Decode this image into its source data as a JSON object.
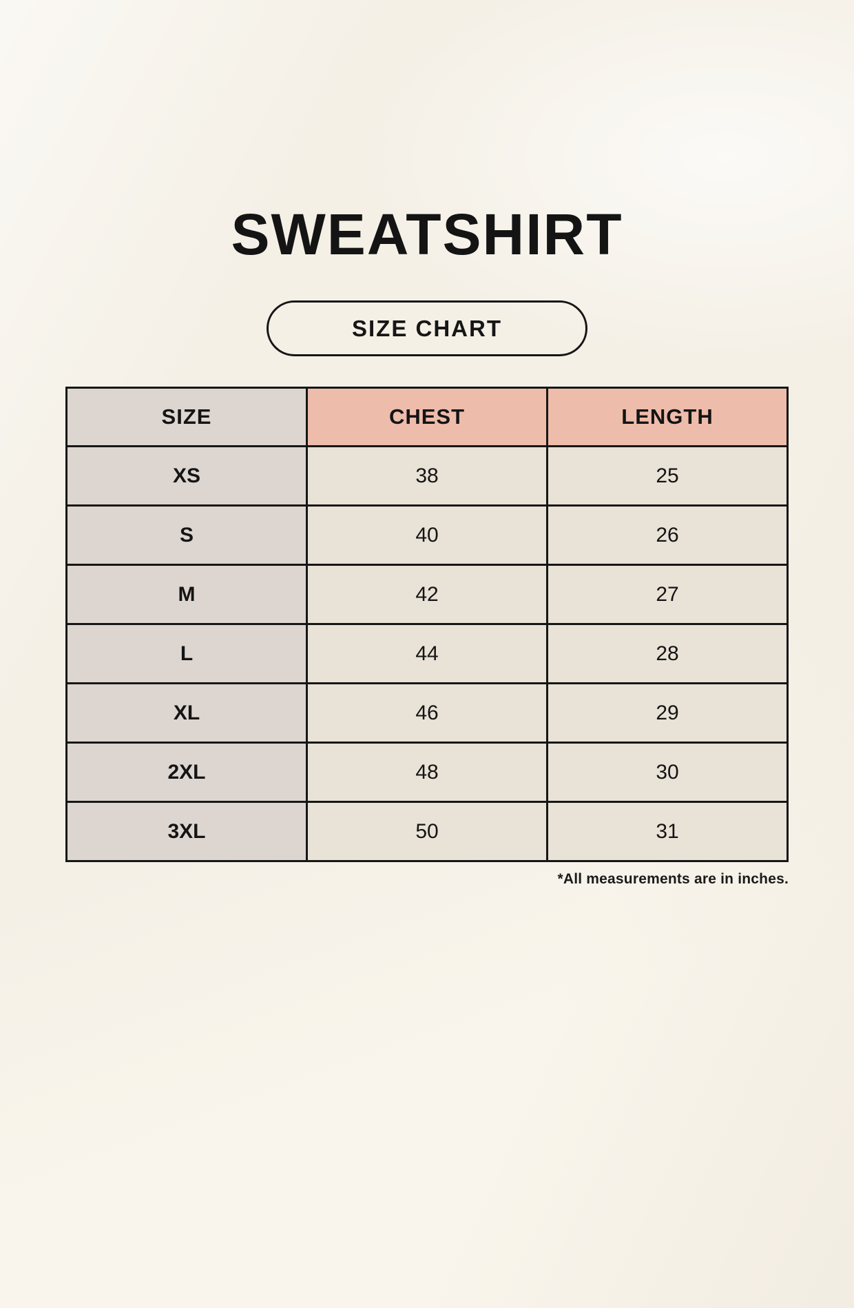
{
  "page": {
    "title": "SWEATSHIRT",
    "badge_label": "SIZE CHART",
    "footnote": "*All measurements are in inches."
  },
  "colors": {
    "background": "#f9f5ec",
    "first_column_fill": "#ddd6d0",
    "header_accent_fill": "#eebcab",
    "data_cell_fill": "#e9e2d6",
    "border_ink": "#161616",
    "text_ink": "#141414"
  },
  "chart_data": {
    "type": "table",
    "title": "SWEATSHIRT",
    "units_note": "*All measurements are in inches.",
    "columns": [
      "SIZE",
      "CHEST",
      "LENGTH"
    ],
    "rows": [
      {
        "size": "XS",
        "chest": "38",
        "length": "25"
      },
      {
        "size": "S",
        "chest": "40",
        "length": "26"
      },
      {
        "size": "M",
        "chest": "42",
        "length": "27"
      },
      {
        "size": "L",
        "chest": "44",
        "length": "28"
      },
      {
        "size": "XL",
        "chest": "46",
        "length": "29"
      },
      {
        "size": "2XL",
        "chest": "48",
        "length": "30"
      },
      {
        "size": "3XL",
        "chest": "50",
        "length": "31"
      }
    ]
  }
}
